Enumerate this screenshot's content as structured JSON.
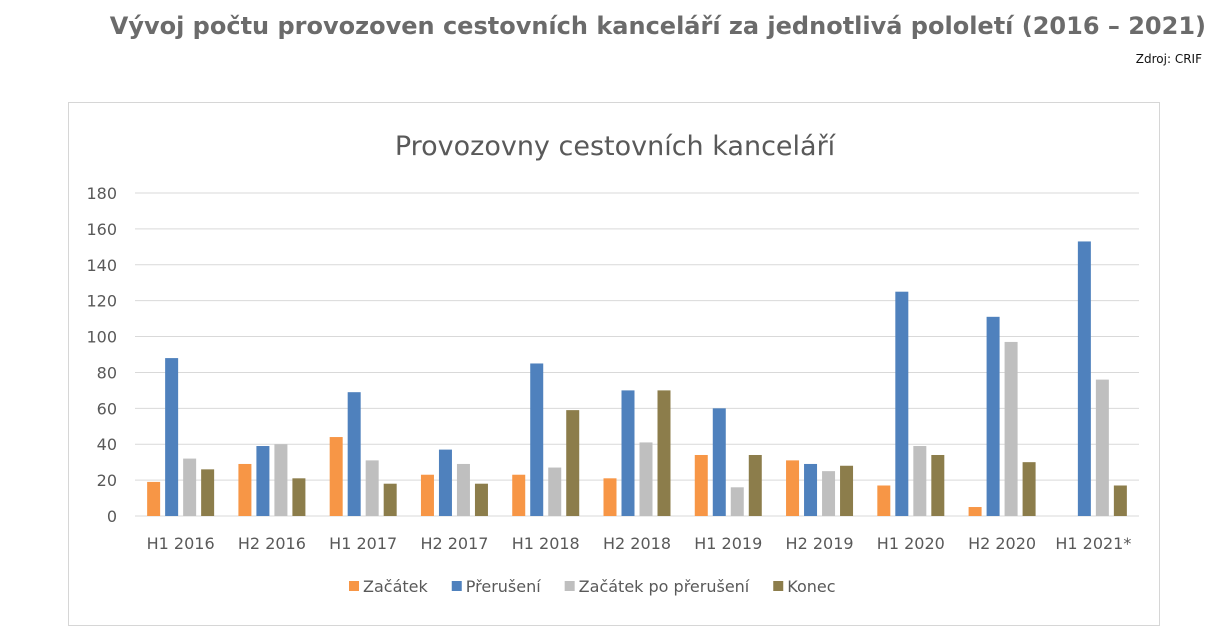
{
  "header": {
    "title": "Vývoj počtu provozoven cestovních kanceláří za jednotlivá pololetí (2016 – 2021)",
    "source": "Zdroj: CRIF"
  },
  "chart_data": {
    "type": "bar",
    "title": "Provozovny cestovních kanceláří",
    "categories": [
      "H1 2016",
      "H2 2016",
      "H1 2017",
      "H2 2017",
      "H1 2018",
      "H2 2018",
      "H1 2019",
      "H2 2019",
      "H1 2020",
      "H2 2020",
      "H1 2021*"
    ],
    "series": [
      {
        "name": "Začátek",
        "color": "#f79646",
        "values": [
          19,
          29,
          44,
          23,
          23,
          21,
          34,
          31,
          17,
          5,
          0
        ]
      },
      {
        "name": "Přerušení",
        "color": "#4f81bd",
        "values": [
          88,
          39,
          69,
          37,
          85,
          70,
          60,
          29,
          125,
          111,
          153
        ]
      },
      {
        "name": "Začátek po přerušení",
        "color": "#bfbfbf",
        "values": [
          32,
          40,
          31,
          29,
          27,
          41,
          16,
          25,
          39,
          97,
          76
        ]
      },
      {
        "name": "Konec",
        "color": "#8c7d4b",
        "values": [
          26,
          21,
          18,
          18,
          59,
          70,
          34,
          28,
          34,
          30,
          17
        ]
      }
    ],
    "ylim": [
      0,
      180
    ],
    "yticks": [
      0,
      20,
      40,
      60,
      80,
      100,
      120,
      140,
      160,
      180
    ],
    "grid": true,
    "legend": "bottom"
  }
}
